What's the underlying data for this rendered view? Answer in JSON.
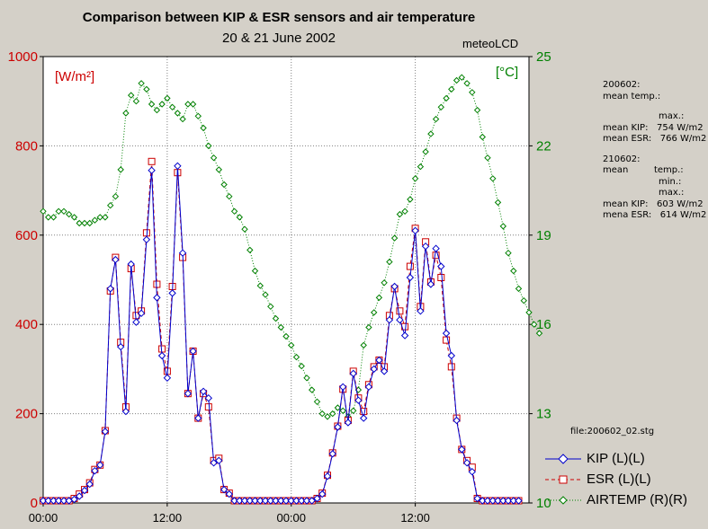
{
  "chart_data": {
    "type": "line",
    "title": "Comparison between KIP & ESR sensors and air temperature",
    "subtitle": "20 & 21 June 2002",
    "source_label": "meteoLCD",
    "left_axis": {
      "unit_label": "[W/m²]",
      "ticks": [
        0,
        200,
        400,
        600,
        800,
        1000
      ],
      "ylim": [
        0,
        1000
      ],
      "color": "#cc0000"
    },
    "right_axis": {
      "unit_label": "[°C]",
      "ticks": [
        10,
        13,
        16,
        19,
        22,
        25
      ],
      "ylim": [
        10,
        25
      ],
      "color": "#008000"
    },
    "x_axis": {
      "ticks": [
        "00:00",
        "12:00",
        "00:00",
        "12:00"
      ],
      "tick_hours": [
        0,
        12,
        24,
        36
      ],
      "range_hours": [
        0,
        47
      ]
    },
    "x_hours_step": 0.5,
    "series": [
      {
        "name": "KIP (L)(L)",
        "legend": "KIP (L)(L)",
        "axis": "left",
        "color": "#0000cc",
        "marker": "diamond",
        "values": [
          5,
          5,
          5,
          5,
          5,
          5,
          8,
          15,
          28,
          42,
          72,
          85,
          160,
          480,
          545,
          350,
          205,
          535,
          405,
          425,
          590,
          745,
          460,
          330,
          280,
          470,
          755,
          560,
          245,
          340,
          190,
          250,
          235,
          90,
          95,
          30,
          20,
          5,
          5,
          5,
          5,
          5,
          5,
          5,
          5,
          5,
          5,
          5,
          5,
          5,
          5,
          5,
          5,
          10,
          20,
          60,
          110,
          170,
          260,
          180,
          290,
          230,
          190,
          260,
          300,
          320,
          295,
          410,
          485,
          410,
          375,
          505,
          610,
          430,
          575,
          490,
          570,
          530,
          380,
          330,
          185,
          120,
          90,
          70,
          10,
          5,
          5,
          5,
          5,
          5,
          5,
          5,
          5
        ]
      },
      {
        "name": "ESR (L)(L)",
        "legend": "ESR (L)(L)",
        "axis": "left",
        "color": "#cc0000",
        "marker": "square",
        "values": [
          5,
          5,
          5,
          5,
          5,
          5,
          10,
          20,
          30,
          45,
          75,
          85,
          162,
          475,
          550,
          360,
          215,
          525,
          420,
          430,
          605,
          765,
          490,
          345,
          295,
          485,
          740,
          550,
          245,
          340,
          190,
          245,
          215,
          95,
          100,
          30,
          22,
          5,
          5,
          5,
          5,
          5,
          5,
          5,
          5,
          5,
          5,
          5,
          5,
          5,
          5,
          5,
          5,
          10,
          22,
          62,
          112,
          172,
          255,
          185,
          295,
          235,
          205,
          265,
          305,
          320,
          305,
          420,
          480,
          430,
          395,
          530,
          615,
          440,
          585,
          495,
          555,
          505,
          365,
          305,
          190,
          120,
          95,
          80,
          10,
          5,
          5,
          5,
          5,
          5,
          5,
          5,
          5
        ]
      },
      {
        "name": "AIRTEMP (R)(R)",
        "legend": "AIRTEMP (R)(R)",
        "axis": "right",
        "color": "#008000",
        "marker": "diamond",
        "values": [
          19.8,
          19.6,
          19.6,
          19.8,
          19.8,
          19.7,
          19.6,
          19.4,
          19.4,
          19.4,
          19.5,
          19.6,
          19.6,
          20.0,
          20.3,
          21.2,
          23.1,
          23.7,
          23.5,
          24.1,
          23.9,
          23.4,
          23.2,
          23.4,
          23.6,
          23.3,
          23.1,
          22.9,
          23.4,
          23.4,
          23.0,
          22.6,
          22.0,
          21.6,
          21.2,
          20.7,
          20.3,
          19.8,
          19.6,
          19.2,
          18.5,
          17.8,
          17.3,
          17.0,
          16.6,
          16.2,
          15.9,
          15.6,
          15.3,
          14.9,
          14.6,
          14.2,
          13.8,
          13.4,
          13.0,
          12.9,
          13.0,
          13.2,
          13.1,
          12.9,
          13.1,
          13.8,
          15.3,
          15.9,
          16.4,
          16.9,
          17.4,
          18.1,
          18.9,
          19.7,
          19.8,
          20.2,
          20.9,
          21.3,
          21.8,
          22.4,
          22.9,
          23.3,
          23.6,
          23.9,
          24.2,
          24.3,
          24.1,
          23.8,
          23.2,
          22.3,
          21.6,
          20.9,
          20.1,
          19.3,
          18.4,
          17.8,
          17.2,
          16.8,
          16.4,
          16.0,
          15.7
        ]
      }
    ]
  },
  "info_panel": {
    "line1": "200602:",
    "line2": "mean temp.:",
    "line3": "max.:",
    "line4": "mean KIP:   754 W/m2",
    "line5": "mean ESR:   766 W/m2",
    "line6": "210602:",
    "line7": "mean         temp.:",
    "line8": "min.:",
    "line9": "max.:",
    "line10": "mean KIP:   603 W/m2",
    "line11": "mena ESR:   614 W/m2"
  },
  "file_label": "file:200602_02.stg"
}
